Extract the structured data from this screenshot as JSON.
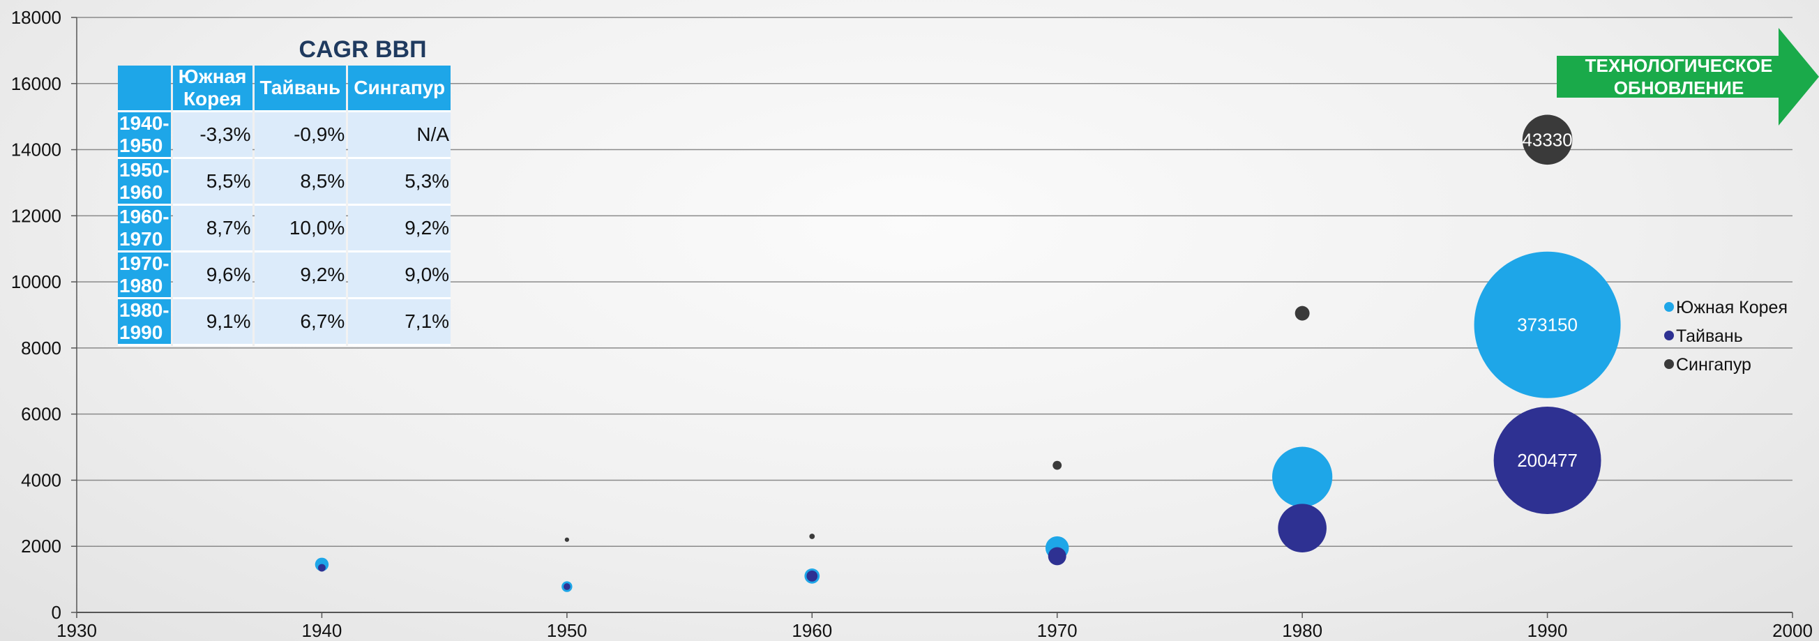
{
  "chart_data": {
    "type": "bubble",
    "xlim": [
      1930,
      2000
    ],
    "ylim": [
      0,
      18000
    ],
    "x_ticks": [
      1930,
      1940,
      1950,
      1960,
      1970,
      1980,
      1990,
      2000
    ],
    "y_ticks": [
      0,
      2000,
      4000,
      6000,
      8000,
      10000,
      12000,
      14000,
      16000,
      18000
    ],
    "grid": true,
    "legend_position": "right",
    "series": [
      {
        "name": "Южная Корея",
        "color": "#1ea6e8",
        "points": [
          {
            "x": 1940,
            "y": 1450,
            "size": 3200
          },
          {
            "x": 1950,
            "y": 780,
            "size": 2000
          },
          {
            "x": 1960,
            "y": 1100,
            "size": 4000
          },
          {
            "x": 1970,
            "y": 1950,
            "size": 9500
          },
          {
            "x": 1980,
            "y": 4100,
            "size": 63000
          },
          {
            "x": 1990,
            "y": 8700,
            "size": 373150,
            "label": "373150"
          }
        ]
      },
      {
        "name": "Тайвань",
        "color": "#2e3192",
        "points": [
          {
            "x": 1940,
            "y": 1350,
            "size": 1000
          },
          {
            "x": 1950,
            "y": 780,
            "size": 800
          },
          {
            "x": 1960,
            "y": 1100,
            "size": 2100
          },
          {
            "x": 1970,
            "y": 1700,
            "size": 5700
          },
          {
            "x": 1980,
            "y": 2550,
            "size": 41000
          },
          {
            "x": 1990,
            "y": 4600,
            "size": 200477,
            "label": "200477"
          }
        ]
      },
      {
        "name": "Сингапур",
        "color": "#3a3a3a",
        "points": [
          {
            "x": 1950,
            "y": 2200,
            "size": 330
          },
          {
            "x": 1960,
            "y": 2300,
            "size": 520
          },
          {
            "x": 1970,
            "y": 4450,
            "size": 1400
          },
          {
            "x": 1980,
            "y": 9050,
            "size": 3700
          },
          {
            "x": 1990,
            "y": 14300,
            "size": 43330,
            "label": "43330"
          }
        ]
      }
    ]
  },
  "cagr_table": {
    "title": "CAGR ВВП",
    "headers": [
      "",
      "Южная Корея",
      "Тайвань",
      "Сингапур"
    ],
    "rows": [
      [
        "1940-1950",
        "-3,3%",
        "-0,9%",
        "N/A"
      ],
      [
        "1950-1960",
        "5,5%",
        "8,5%",
        "5,3%"
      ],
      [
        "1960-1970",
        "8,7%",
        "10,0%",
        "9,2%"
      ],
      [
        "1970-1980",
        "9,6%",
        "9,2%",
        "9,0%"
      ],
      [
        "1980-1990",
        "9,1%",
        "6,7%",
        "7,1%"
      ]
    ]
  },
  "arrow": {
    "line1": "ТЕХНОЛОГИЧЕСКОЕ",
    "line2": "ОБНОВЛЕНИЕ",
    "color": "#1aaa4a"
  }
}
